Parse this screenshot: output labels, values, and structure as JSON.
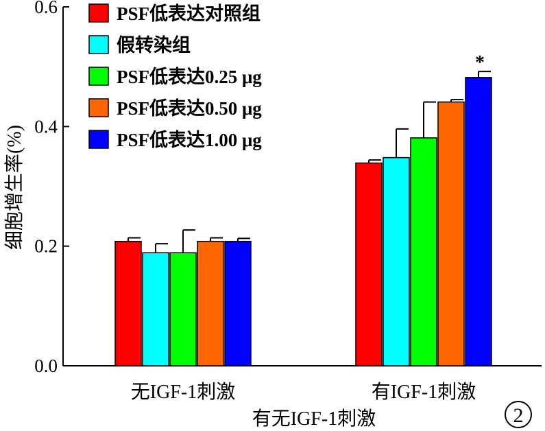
{
  "chart_data": {
    "type": "bar",
    "xlabel": "有无IGF-1刺激",
    "ylabel": "细胞增生率(%)",
    "ylim": [
      0,
      0.6
    ],
    "yticks": [
      0.0,
      0.2,
      0.4,
      0.6
    ],
    "ytick_labels": [
      "0.0",
      "0.2",
      "0.4",
      "0.6"
    ],
    "categories": [
      "无IGF-1刺激",
      "有IGF-1刺激"
    ],
    "legend_placement": "top-left",
    "grid": false,
    "series": [
      {
        "name": "PSF低表达对照组",
        "color": "#ff0000",
        "values": [
          0.208,
          0.339
        ],
        "errors": [
          0.006,
          0.005
        ]
      },
      {
        "name": "假转染组",
        "color": "#00ffff",
        "values": [
          0.189,
          0.348
        ],
        "errors": [
          0.015,
          0.048
        ]
      },
      {
        "name": "PSF低表达0.25 μg",
        "color": "#00ff00",
        "values": [
          0.189,
          0.381
        ],
        "errors": [
          0.038,
          0.06
        ]
      },
      {
        "name": "PSF低表达0.50 μg",
        "color": "#ff6600",
        "values": [
          0.208,
          0.441
        ],
        "errors": [
          0.006,
          0.004
        ]
      },
      {
        "name": "PSF低表达1.00 μg",
        "color": "#0000ff",
        "values": [
          0.208,
          0.482
        ],
        "errors": [
          0.005,
          0.01
        ]
      }
    ],
    "annotations": [
      {
        "text": "*",
        "category_index": 1,
        "series_index": 4
      }
    ]
  },
  "figure_number": "2"
}
